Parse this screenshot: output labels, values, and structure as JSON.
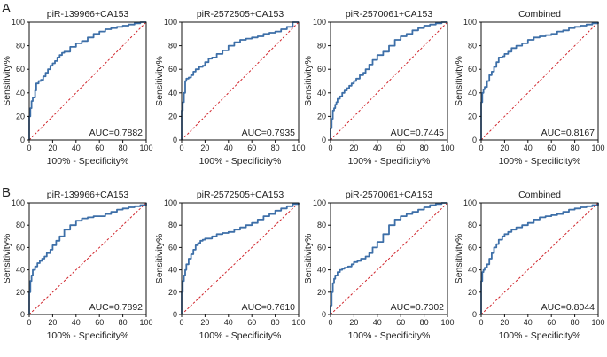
{
  "styles": {
    "curve_color": "#3d6fa8",
    "reference_color": "#d0242b",
    "axis_color": "#111111"
  },
  "chart_data": [
    {
      "type": "line",
      "panel": "A",
      "title": "piR-139966+CA153",
      "xlabel": "100% - Specificity%",
      "ylabel": "Sensitivity%",
      "xlim": [
        0,
        100
      ],
      "ylim": [
        0,
        100
      ],
      "xticks": [
        0,
        20,
        40,
        60,
        80,
        100
      ],
      "yticks": [
        0,
        20,
        40,
        60,
        80,
        100
      ],
      "annotation": "AUC=0.7882",
      "series": [
        {
          "role": "roc",
          "x": [
            0,
            0,
            1,
            2,
            3,
            5,
            6,
            8,
            10,
            12,
            14,
            16,
            18,
            20,
            22,
            24,
            26,
            28,
            30,
            35,
            40,
            45,
            50,
            55,
            60,
            65,
            70,
            75,
            80,
            85,
            90,
            95,
            100
          ],
          "y": [
            0,
            20,
            27,
            33,
            36,
            42,
            48,
            50,
            51,
            54,
            57,
            60,
            63,
            65,
            67,
            70,
            72,
            74,
            75,
            79,
            82,
            84,
            87,
            90,
            92,
            94,
            95,
            96,
            97,
            98,
            99,
            100,
            100
          ]
        },
        {
          "role": "reference",
          "x": [
            0,
            100
          ],
          "y": [
            0,
            100
          ]
        }
      ]
    },
    {
      "type": "line",
      "panel": "A",
      "title": "piR-2572505+CA153",
      "xlabel": "100% - Specificity%",
      "ylabel": "Sensitivity%",
      "xlim": [
        0,
        100
      ],
      "ylim": [
        0,
        100
      ],
      "xticks": [
        0,
        20,
        40,
        60,
        80,
        100
      ],
      "yticks": [
        0,
        20,
        40,
        60,
        80,
        100
      ],
      "annotation": "AUC=0.7935",
      "series": [
        {
          "role": "roc",
          "x": [
            0,
            0,
            1,
            2,
            3,
            4,
            6,
            8,
            10,
            12,
            15,
            18,
            20,
            23,
            26,
            30,
            35,
            40,
            45,
            50,
            55,
            60,
            65,
            70,
            75,
            80,
            85,
            90,
            95,
            100
          ],
          "y": [
            0,
            25,
            32,
            40,
            50,
            52,
            53,
            55,
            58,
            60,
            62,
            63,
            66,
            69,
            70,
            73,
            76,
            80,
            83,
            85,
            86,
            87,
            88,
            90,
            91,
            92,
            94,
            96,
            100,
            100
          ]
        },
        {
          "role": "reference",
          "x": [
            0,
            100
          ],
          "y": [
            0,
            100
          ]
        }
      ]
    },
    {
      "type": "line",
      "panel": "A",
      "title": "piR-2570061+CA153",
      "xlabel": "100% - Specificity%",
      "ylabel": "Sensitivity%",
      "xlim": [
        0,
        100
      ],
      "ylim": [
        0,
        100
      ],
      "xticks": [
        0,
        20,
        40,
        60,
        80,
        100
      ],
      "yticks": [
        0,
        20,
        40,
        60,
        80,
        100
      ],
      "annotation": "AUC=0.7445",
      "series": [
        {
          "role": "roc",
          "x": [
            0,
            0,
            1,
            2,
            3,
            4,
            5,
            6,
            8,
            10,
            12,
            14,
            16,
            18,
            20,
            22,
            25,
            28,
            30,
            33,
            36,
            40,
            45,
            50,
            55,
            60,
            65,
            70,
            75,
            80,
            85,
            90,
            95,
            100
          ],
          "y": [
            0,
            10,
            18,
            25,
            27,
            30,
            32,
            35,
            37,
            40,
            42,
            44,
            46,
            48,
            50,
            52,
            55,
            57,
            60,
            64,
            68,
            72,
            75,
            80,
            85,
            88,
            90,
            93,
            95,
            97,
            98,
            99,
            100,
            100
          ]
        },
        {
          "role": "reference",
          "x": [
            0,
            100
          ],
          "y": [
            0,
            100
          ]
        }
      ]
    },
    {
      "type": "line",
      "panel": "A",
      "title": "Combined",
      "xlabel": "100% - Specificity%",
      "ylabel": "Sensitivity%",
      "xlim": [
        0,
        100
      ],
      "ylim": [
        0,
        100
      ],
      "xticks": [
        0,
        20,
        40,
        60,
        80,
        100
      ],
      "yticks": [
        0,
        20,
        40,
        60,
        80,
        100
      ],
      "annotation": "AUC=0.8167",
      "series": [
        {
          "role": "roc",
          "x": [
            0,
            0,
            1,
            2,
            3,
            5,
            7,
            9,
            11,
            13,
            15,
            18,
            20,
            23,
            26,
            30,
            35,
            40,
            45,
            50,
            55,
            60,
            65,
            70,
            75,
            80,
            85,
            90,
            95,
            100
          ],
          "y": [
            0,
            32,
            40,
            43,
            45,
            50,
            55,
            58,
            62,
            66,
            70,
            71,
            73,
            75,
            78,
            80,
            82,
            85,
            87,
            88,
            89,
            90,
            92,
            93,
            95,
            96,
            97,
            98,
            99,
            100
          ]
        },
        {
          "role": "reference",
          "x": [
            0,
            100
          ],
          "y": [
            0,
            100
          ]
        }
      ]
    },
    {
      "type": "line",
      "panel": "B",
      "title": "piR-139966+CA153",
      "xlabel": "100% - Specificity%",
      "ylabel": "Sensitivity%",
      "xlim": [
        0,
        100
      ],
      "ylim": [
        0,
        100
      ],
      "xticks": [
        0,
        20,
        40,
        60,
        80,
        100
      ],
      "yticks": [
        0,
        20,
        40,
        60,
        80,
        100
      ],
      "annotation": "AUC=0.7892",
      "series": [
        {
          "role": "roc",
          "x": [
            0,
            0,
            1,
            2,
            3,
            5,
            7,
            9,
            11,
            13,
            15,
            18,
            20,
            23,
            26,
            30,
            35,
            40,
            45,
            50,
            55,
            60,
            65,
            70,
            75,
            80,
            85,
            90,
            95,
            100
          ],
          "y": [
            0,
            20,
            30,
            35,
            40,
            43,
            46,
            48,
            50,
            52,
            55,
            58,
            62,
            66,
            70,
            76,
            80,
            84,
            86,
            87,
            88,
            88,
            90,
            92,
            94,
            95,
            96,
            97,
            98,
            100
          ]
        },
        {
          "role": "reference",
          "x": [
            0,
            100
          ],
          "y": [
            0,
            100
          ]
        }
      ]
    },
    {
      "type": "line",
      "panel": "B",
      "title": "piR-2572505+CA153",
      "xlabel": "100% - Specificity%",
      "ylabel": "Sensitivity%",
      "xlim": [
        0,
        100
      ],
      "ylim": [
        0,
        100
      ],
      "xticks": [
        0,
        20,
        40,
        60,
        80,
        100
      ],
      "yticks": [
        0,
        20,
        40,
        60,
        80,
        100
      ],
      "annotation": "AUC=0.7610",
      "series": [
        {
          "role": "roc",
          "x": [
            0,
            0,
            1,
            2,
            3,
            4,
            6,
            8,
            10,
            12,
            14,
            16,
            18,
            20,
            23,
            26,
            30,
            35,
            40,
            45,
            50,
            55,
            60,
            65,
            70,
            75,
            80,
            85,
            90,
            95,
            100
          ],
          "y": [
            0,
            20,
            30,
            35,
            40,
            45,
            50,
            54,
            58,
            62,
            64,
            66,
            67,
            68,
            68,
            70,
            72,
            73,
            74,
            76,
            78,
            80,
            82,
            85,
            88,
            90,
            93,
            95,
            97,
            99,
            100
          ]
        },
        {
          "role": "reference",
          "x": [
            0,
            100
          ],
          "y": [
            0,
            100
          ]
        }
      ]
    },
    {
      "type": "line",
      "panel": "B",
      "title": "piR-2570061+CA153",
      "xlabel": "100% - Specificity%",
      "ylabel": "Sensitivity%",
      "xlim": [
        0,
        100
      ],
      "ylim": [
        0,
        100
      ],
      "xticks": [
        0,
        20,
        40,
        60,
        80,
        100
      ],
      "yticks": [
        0,
        20,
        40,
        60,
        80,
        100
      ],
      "annotation": "AUC=0.7302",
      "series": [
        {
          "role": "roc",
          "x": [
            0,
            0,
            1,
            2,
            3,
            4,
            6,
            8,
            10,
            12,
            15,
            18,
            20,
            23,
            26,
            30,
            33,
            36,
            40,
            45,
            50,
            55,
            60,
            65,
            70,
            75,
            80,
            85,
            90,
            95,
            100
          ],
          "y": [
            0,
            8,
            20,
            28,
            32,
            35,
            38,
            40,
            41,
            42,
            43,
            45,
            47,
            48,
            50,
            52,
            55,
            60,
            65,
            72,
            80,
            85,
            88,
            90,
            92,
            94,
            96,
            98,
            99,
            100,
            100
          ]
        },
        {
          "role": "reference",
          "x": [
            0,
            100
          ],
          "y": [
            0,
            100
          ]
        }
      ]
    },
    {
      "type": "line",
      "panel": "B",
      "title": "Combined",
      "xlabel": "100% - Specificity%",
      "ylabel": "Sensitivity%",
      "xlim": [
        0,
        100
      ],
      "ylim": [
        0,
        100
      ],
      "xticks": [
        0,
        20,
        40,
        60,
        80,
        100
      ],
      "yticks": [
        0,
        20,
        40,
        60,
        80,
        100
      ],
      "annotation": "AUC=0.8044",
      "series": [
        {
          "role": "roc",
          "x": [
            0,
            0,
            1,
            2,
            3,
            5,
            7,
            9,
            11,
            13,
            15,
            18,
            20,
            23,
            26,
            30,
            35,
            40,
            45,
            50,
            55,
            60,
            65,
            70,
            75,
            80,
            85,
            90,
            95,
            100
          ],
          "y": [
            0,
            30,
            38,
            40,
            42,
            45,
            50,
            55,
            60,
            63,
            67,
            70,
            72,
            74,
            76,
            78,
            80,
            82,
            85,
            87,
            88,
            89,
            90,
            92,
            94,
            95,
            96,
            97,
            98,
            100
          ]
        },
        {
          "role": "reference",
          "x": [
            0,
            100
          ],
          "y": [
            0,
            100
          ]
        }
      ]
    }
  ],
  "panel_labels": [
    "A",
    "B"
  ]
}
